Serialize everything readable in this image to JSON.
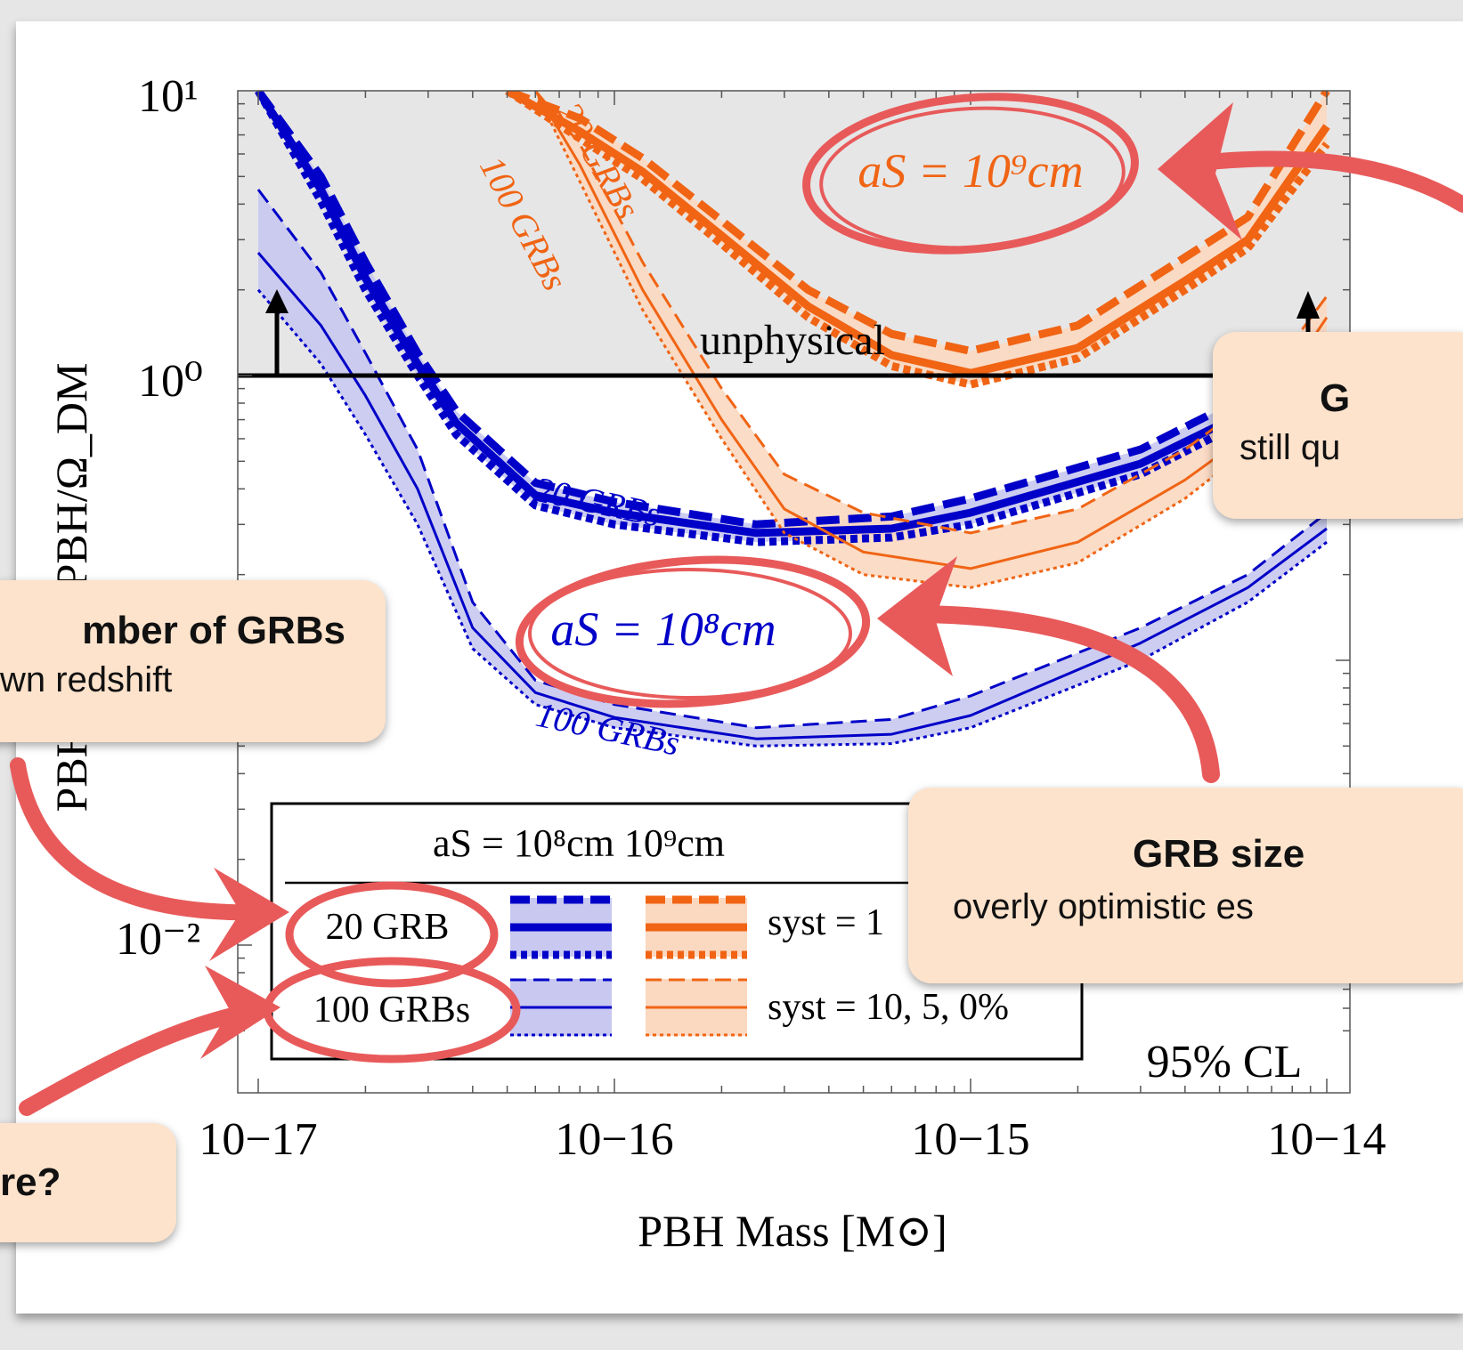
{
  "chart_data": {
    "type": "line",
    "xlabel": "PBH Mass [M⊙]",
    "ylabel": "PBH f ... Ω_PBH/Ω_DM",
    "x_scale": "log",
    "y_scale": "log",
    "xlim": [
      1e-17,
      1e-14
    ],
    "ylim": [
      0.005,
      10
    ],
    "x_tick_labels": [
      "10−17",
      "10−16",
      "10−15",
      "10−14"
    ],
    "y_tick_labels": [
      "10¹",
      "10⁰",
      "10⁻²"
    ],
    "unphysical_label": "unphysical",
    "unphysical_threshold": 1,
    "confidence_label": "95% CL",
    "inline_labels": {
      "blue_20": "20 GRBs",
      "blue_100": "100 GRBs",
      "orange_20": "20 GRBs",
      "orange_100": "100 GRBs",
      "as8": "aS = 10⁸cm",
      "as9": "aS = 10⁹cm"
    },
    "colors": {
      "blue": "#0000c8",
      "blue_band": "#c8c8f0",
      "orange": "#f06414",
      "orange_band": "#fbd8c0",
      "unphysical": "#e6e6e6",
      "annotation": "#e85a5a"
    },
    "series": [
      {
        "group": "aS=10^8cm",
        "grbs": 20,
        "syst": 10,
        "style": "thick-dashed",
        "x": [
          1e-17,
          1.5e-17,
          2e-17,
          2.8e-17,
          3.6e-17,
          6e-17,
          1e-16,
          2.5e-16,
          6e-16,
          1e-15,
          3e-15,
          6e-15,
          1e-14
        ],
        "y": [
          10,
          5,
          2.5,
          1.2,
          0.75,
          0.42,
          0.36,
          0.3,
          0.32,
          0.37,
          0.55,
          0.85,
          1.35
        ]
      },
      {
        "group": "aS=10^8cm",
        "grbs": 20,
        "syst": 5,
        "style": "thick-solid",
        "x": [
          1e-17,
          1.5e-17,
          2e-17,
          2.8e-17,
          3.6e-17,
          6e-17,
          1e-16,
          2.5e-16,
          6e-16,
          1e-15,
          3e-15,
          6e-15,
          1e-14
        ],
        "y": [
          10,
          4.5,
          2.2,
          1.1,
          0.68,
          0.38,
          0.33,
          0.28,
          0.29,
          0.33,
          0.49,
          0.75,
          1.25
        ]
      },
      {
        "group": "aS=10^8cm",
        "grbs": 20,
        "syst": 0,
        "style": "thick-dotted",
        "x": [
          1e-17,
          1.5e-17,
          2e-17,
          2.8e-17,
          3.6e-17,
          6e-17,
          1e-16,
          2.5e-16,
          6e-16,
          1e-15,
          3e-15,
          6e-15,
          1e-14
        ],
        "y": [
          10,
          4.1,
          2.0,
          1.0,
          0.62,
          0.35,
          0.3,
          0.26,
          0.27,
          0.3,
          0.45,
          0.7,
          1.15
        ]
      },
      {
        "group": "aS=10^8cm",
        "grbs": 100,
        "syst": 10,
        "style": "thin-dashed",
        "x": [
          1e-17,
          1.5e-17,
          2e-17,
          2.8e-17,
          4e-17,
          6e-17,
          1e-16,
          2.5e-16,
          6e-16,
          1e-15,
          3e-15,
          6e-15,
          1e-14
        ],
        "y": [
          4.5,
          2.3,
          1.2,
          0.55,
          0.16,
          0.085,
          0.07,
          0.058,
          0.062,
          0.075,
          0.13,
          0.2,
          0.33
        ]
      },
      {
        "group": "aS=10^8cm",
        "grbs": 100,
        "syst": 5,
        "style": "thin-solid",
        "x": [
          1e-17,
          1.5e-17,
          2e-17,
          2.8e-17,
          4e-17,
          6e-17,
          1e-16,
          2.5e-16,
          6e-16,
          1e-15,
          3e-15,
          6e-15,
          1e-14
        ],
        "y": [
          2.7,
          1.5,
          0.85,
          0.4,
          0.13,
          0.077,
          0.063,
          0.053,
          0.055,
          0.064,
          0.115,
          0.18,
          0.29
        ]
      },
      {
        "group": "aS=10^8cm",
        "grbs": 100,
        "syst": 0,
        "style": "thin-dotted",
        "x": [
          1e-17,
          1.5e-17,
          2e-17,
          2.8e-17,
          4e-17,
          6e-17,
          1e-16,
          2.5e-16,
          6e-16,
          1e-15,
          3e-15,
          6e-15,
          1e-14
        ],
        "y": [
          2.0,
          1.1,
          0.62,
          0.3,
          0.11,
          0.07,
          0.058,
          0.05,
          0.051,
          0.058,
          0.1,
          0.16,
          0.26
        ]
      },
      {
        "group": "aS=10^9cm",
        "grbs": 20,
        "syst": 10,
        "style": "thick-dashed",
        "x": [
          5e-17,
          8e-17,
          1.2e-16,
          2e-16,
          3.5e-16,
          6e-16,
          1e-15,
          2e-15,
          4e-15,
          6e-15,
          1e-14
        ],
        "y": [
          10,
          8,
          5.8,
          3.5,
          2.0,
          1.4,
          1.22,
          1.5,
          2.6,
          3.6,
          10
        ]
      },
      {
        "group": "aS=10^9cm",
        "grbs": 20,
        "syst": 5,
        "style": "thick-solid",
        "x": [
          5e-17,
          8e-17,
          1.2e-16,
          2e-16,
          3.5e-16,
          6e-16,
          1e-15,
          2e-15,
          4e-15,
          6e-15,
          1e-14
        ],
        "y": [
          10,
          7.2,
          5.2,
          3.1,
          1.75,
          1.18,
          1.02,
          1.25,
          2.15,
          3.0,
          7.5
        ]
      },
      {
        "group": "aS=10^9cm",
        "grbs": 20,
        "syst": 0,
        "style": "thick-dotted",
        "x": [
          5e-17,
          8e-17,
          1.2e-16,
          2e-16,
          3.5e-16,
          6e-16,
          1e-15,
          2e-15,
          4e-15,
          6e-15,
          1e-14
        ],
        "y": [
          10,
          6.8,
          4.9,
          2.9,
          1.6,
          1.08,
          0.93,
          1.15,
          2.0,
          2.8,
          6.5
        ]
      },
      {
        "group": "aS=10^9cm",
        "grbs": 100,
        "syst": 10,
        "style": "thin-dashed",
        "x": [
          6e-17,
          8e-17,
          1.2e-16,
          2e-16,
          3e-16,
          5e-16,
          1e-15,
          2e-15,
          4e-15,
          6e-15,
          1e-14
        ],
        "y": [
          10,
          6.5,
          2.5,
          0.9,
          0.45,
          0.33,
          0.28,
          0.34,
          0.55,
          0.8,
          1.9
        ]
      },
      {
        "group": "aS=10^9cm",
        "grbs": 100,
        "syst": 5,
        "style": "thin-solid",
        "x": [
          6e-17,
          8e-17,
          1.2e-16,
          2e-16,
          3e-16,
          5e-16,
          1e-15,
          2e-15,
          4e-15,
          6e-15,
          1e-14
        ],
        "y": [
          10,
          5.5,
          2.0,
          0.7,
          0.34,
          0.24,
          0.21,
          0.26,
          0.43,
          0.62,
          1.6
        ]
      },
      {
        "group": "aS=10^9cm",
        "grbs": 100,
        "syst": 0,
        "style": "thin-dotted",
        "x": [
          6e-17,
          8e-17,
          1.2e-16,
          2e-16,
          3e-16,
          5e-16,
          1e-15,
          2e-15,
          4e-15,
          6e-15,
          1e-14
        ],
        "y": [
          10,
          4.8,
          1.7,
          0.6,
          0.28,
          0.2,
          0.18,
          0.22,
          0.37,
          0.55,
          1.4
        ]
      }
    ],
    "legend": {
      "placement": "bottom-left",
      "header": "aS = 10⁸cm 10⁹cm",
      "rows": [
        {
          "label": "20 GRB",
          "syst": "syst = 1"
        },
        {
          "label": "100 GRBs",
          "syst": "syst = 10, 5, 0%"
        }
      ]
    }
  },
  "callouts": {
    "top_right_title": "G",
    "top_right_sub": "still qu",
    "left_title": "mber of GRBs",
    "left_sub": "wn redshift",
    "bottom_right_title": "GRB size",
    "bottom_right_sub": "overly optimistic es",
    "bottom_left_title": "re?"
  }
}
